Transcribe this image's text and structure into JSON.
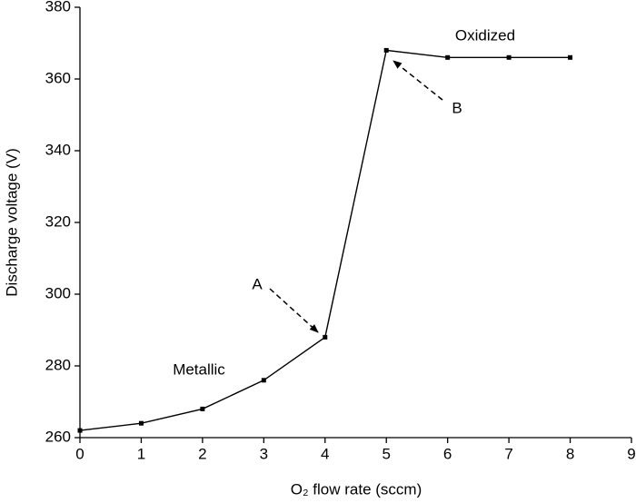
{
  "chart_data": {
    "type": "line",
    "x_label": "O₂ flow rate (sccm)",
    "y_label": "Discharge voltage (V)",
    "x": [
      0,
      1,
      2,
      3,
      4,
      5,
      6,
      7,
      8
    ],
    "series": [
      {
        "color": "#000000",
        "values": [
          262,
          264,
          268,
          276,
          288,
          368,
          366,
          366,
          366
        ]
      }
    ],
    "xlim": [
      0,
      9
    ],
    "xticks": [
      0,
      1,
      2,
      3,
      4,
      5,
      6,
      7,
      8,
      9
    ],
    "ylim": [
      260,
      380
    ],
    "yticks": [
      260,
      280,
      300,
      320,
      340,
      360,
      380
    ],
    "annotations": [
      "Oxidized",
      "B",
      "A",
      "Metallic"
    ]
  }
}
